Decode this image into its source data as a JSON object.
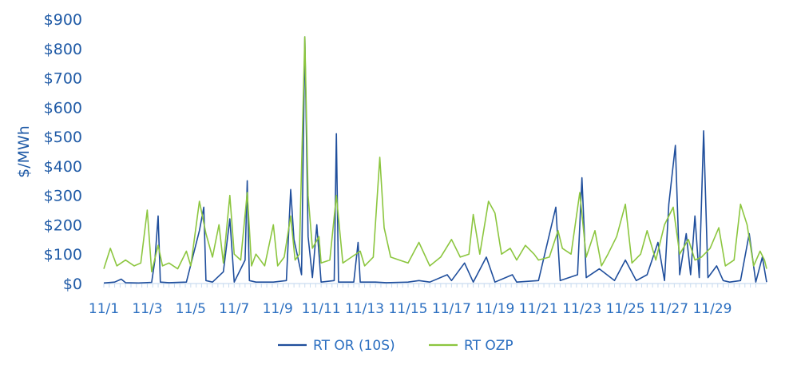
{
  "chart_data": {
    "type": "line",
    "title": "",
    "xlabel": "",
    "ylabel": "$/MWh",
    "ylim": [
      0,
      900
    ],
    "yticks": [
      "$0",
      "$100",
      "$200",
      "$300",
      "$400",
      "$500",
      "$600",
      "$700",
      "$800",
      "$900"
    ],
    "xtick_labels": [
      "11/1",
      "11/3",
      "11/5",
      "11/7",
      "11/9",
      "11/11",
      "11/13",
      "11/15",
      "11/17",
      "11/19",
      "11/21",
      "11/23",
      "11/25",
      "11/27",
      "11/29"
    ],
    "xdomain": [
      "11/1",
      "12/1"
    ],
    "grid": false,
    "legend_position": "bottom",
    "series": [
      {
        "name": "RT OR (10S)",
        "color": "#1f4e9c",
        "points": [
          [
            "11/1",
            2
          ],
          [
            "11/1.5",
            5
          ],
          [
            "11/1.8",
            15
          ],
          [
            "11/2",
            3
          ],
          [
            "11/2.6",
            2
          ],
          [
            "11/3.2",
            4
          ],
          [
            "11/3.35",
            80
          ],
          [
            "11/3.5",
            230
          ],
          [
            "11/3.6",
            5
          ],
          [
            "11/4",
            3
          ],
          [
            "11/4.8",
            5
          ],
          [
            "11/5.4",
            180
          ],
          [
            "11/5.6",
            260
          ],
          [
            "11/5.7",
            10
          ],
          [
            "11/6",
            5
          ],
          [
            "11/6.5",
            40
          ],
          [
            "11/6.8",
            220
          ],
          [
            "11/7",
            5
          ],
          [
            "11/7.5",
            80
          ],
          [
            "11/7.6",
            350
          ],
          [
            "11/7.7",
            10
          ],
          [
            "11/8",
            5
          ],
          [
            "11/8.8",
            5
          ],
          [
            "11/9.4",
            10
          ],
          [
            "11/9.6",
            320
          ],
          [
            "11/9.75",
            150
          ],
          [
            "11/10.1",
            30
          ],
          [
            "11/10.25",
            840
          ],
          [
            "11/10.4",
            160
          ],
          [
            "11/10.6",
            20
          ],
          [
            "11/10.8",
            200
          ],
          [
            "11/11",
            5
          ],
          [
            "11/11.6",
            10
          ],
          [
            "11/11.7",
            510
          ],
          [
            "11/11.8",
            5
          ],
          [
            "11/12.5",
            5
          ],
          [
            "11/12.7",
            140
          ],
          [
            "11/12.8",
            5
          ],
          [
            "11/13.5",
            5
          ],
          [
            "11/14",
            3
          ],
          [
            "11/15",
            5
          ],
          [
            "11/15.5",
            10
          ],
          [
            "11/16",
            5
          ],
          [
            "11/16.8",
            30
          ],
          [
            "11/17",
            10
          ],
          [
            "11/17.6",
            70
          ],
          [
            "11/18",
            5
          ],
          [
            "11/18.6",
            90
          ],
          [
            "11/19",
            5
          ],
          [
            "11/19.8",
            30
          ],
          [
            "11/20",
            5
          ],
          [
            "11/21",
            10
          ],
          [
            "11/21.8",
            260
          ],
          [
            "11/22",
            10
          ],
          [
            "11/22.8",
            30
          ],
          [
            "11/23",
            360
          ],
          [
            "11/23.2",
            20
          ],
          [
            "11/23.8",
            50
          ],
          [
            "11/24.5",
            10
          ],
          [
            "11/25",
            80
          ],
          [
            "11/25.5",
            10
          ],
          [
            "11/26",
            30
          ],
          [
            "11/26.5",
            140
          ],
          [
            "11/26.8",
            10
          ],
          [
            "11/27",
            270
          ],
          [
            "11/27.3",
            470
          ],
          [
            "11/27.5",
            30
          ],
          [
            "11/27.8",
            170
          ],
          [
            "11/28",
            30
          ],
          [
            "11/28.2",
            230
          ],
          [
            "11/28.4",
            20
          ],
          [
            "11/28.6",
            520
          ],
          [
            "11/28.8",
            20
          ],
          [
            "11/29.2",
            60
          ],
          [
            "11/29.5",
            10
          ],
          [
            "11/29.8",
            5
          ],
          [
            "11/30.3",
            10
          ],
          [
            "11/30.7",
            170
          ],
          [
            "11/31",
            5
          ],
          [
            "11/31.3",
            90
          ],
          [
            "11/31.5",
            5
          ]
        ]
      },
      {
        "name": "RT OZP",
        "color": "#8cc63f",
        "points": [
          [
            "11/1",
            50
          ],
          [
            "11/1.3",
            120
          ],
          [
            "11/1.6",
            60
          ],
          [
            "11/2",
            80
          ],
          [
            "11/2.4",
            60
          ],
          [
            "11/2.7",
            70
          ],
          [
            "11/3",
            250
          ],
          [
            "11/3.2",
            40
          ],
          [
            "11/3.5",
            130
          ],
          [
            "11/3.7",
            60
          ],
          [
            "11/4",
            70
          ],
          [
            "11/4.4",
            50
          ],
          [
            "11/4.8",
            110
          ],
          [
            "11/5",
            60
          ],
          [
            "11/5.4",
            280
          ],
          [
            "11/5.7",
            170
          ],
          [
            "11/6",
            90
          ],
          [
            "11/6.3",
            200
          ],
          [
            "11/6.5",
            70
          ],
          [
            "11/6.8",
            300
          ],
          [
            "11/7",
            100
          ],
          [
            "11/7.3",
            80
          ],
          [
            "11/7.6",
            310
          ],
          [
            "11/7.8",
            60
          ],
          [
            "11/8",
            100
          ],
          [
            "11/8.4",
            60
          ],
          [
            "11/8.8",
            200
          ],
          [
            "11/9",
            60
          ],
          [
            "11/9.3",
            90
          ],
          [
            "11/9.6",
            230
          ],
          [
            "11/9.8",
            80
          ],
          [
            "11/10",
            100
          ],
          [
            "11/10.25",
            840
          ],
          [
            "11/10.4",
            300
          ],
          [
            "11/10.6",
            120
          ],
          [
            "11/10.9",
            160
          ],
          [
            "11/11",
            70
          ],
          [
            "11/11.4",
            80
          ],
          [
            "11/11.7",
            300
          ],
          [
            "11/12",
            70
          ],
          [
            "11/12.4",
            90
          ],
          [
            "11/12.8",
            110
          ],
          [
            "11/13",
            60
          ],
          [
            "11/13.4",
            90
          ],
          [
            "11/13.7",
            430
          ],
          [
            "11/13.9",
            190
          ],
          [
            "11/14.2",
            90
          ],
          [
            "11/14.6",
            80
          ],
          [
            "11/15",
            70
          ],
          [
            "11/15.5",
            140
          ],
          [
            "11/16",
            60
          ],
          [
            "11/16.5",
            90
          ],
          [
            "11/17",
            150
          ],
          [
            "11/17.4",
            90
          ],
          [
            "11/17.8",
            100
          ],
          [
            "11/18",
            235
          ],
          [
            "11/18.3",
            100
          ],
          [
            "11/18.7",
            280
          ],
          [
            "11/19",
            240
          ],
          [
            "11/19.3",
            100
          ],
          [
            "11/19.7",
            120
          ],
          [
            "11/20",
            80
          ],
          [
            "11/20.4",
            130
          ],
          [
            "11/20.8",
            100
          ],
          [
            "11/21",
            80
          ],
          [
            "11/21.5",
            90
          ],
          [
            "11/21.9",
            180
          ],
          [
            "11/22.1",
            120
          ],
          [
            "11/22.5",
            100
          ],
          [
            "11/22.9",
            310
          ],
          [
            "11/23.2",
            90
          ],
          [
            "11/23.6",
            180
          ],
          [
            "11/23.9",
            60
          ],
          [
            "11/24.2",
            100
          ],
          [
            "11/24.6",
            160
          ],
          [
            "11/25",
            270
          ],
          [
            "11/25.3",
            70
          ],
          [
            "11/25.7",
            100
          ],
          [
            "11/26",
            180
          ],
          [
            "11/26.4",
            80
          ],
          [
            "11/26.8",
            200
          ],
          [
            "11/27.2",
            260
          ],
          [
            "11/27.5",
            100
          ],
          [
            "11/27.9",
            150
          ],
          [
            "11/28.2",
            80
          ],
          [
            "11/28.5",
            90
          ],
          [
            "11/28.9",
            120
          ],
          [
            "11/29.3",
            190
          ],
          [
            "11/29.6",
            60
          ],
          [
            "11/30",
            80
          ],
          [
            "11/30.3",
            270
          ],
          [
            "11/30.6",
            200
          ],
          [
            "11/30.9",
            60
          ],
          [
            "11/31.2",
            110
          ],
          [
            "11/31.4",
            80
          ],
          [
            "11/31.5",
            50
          ]
        ]
      }
    ]
  }
}
